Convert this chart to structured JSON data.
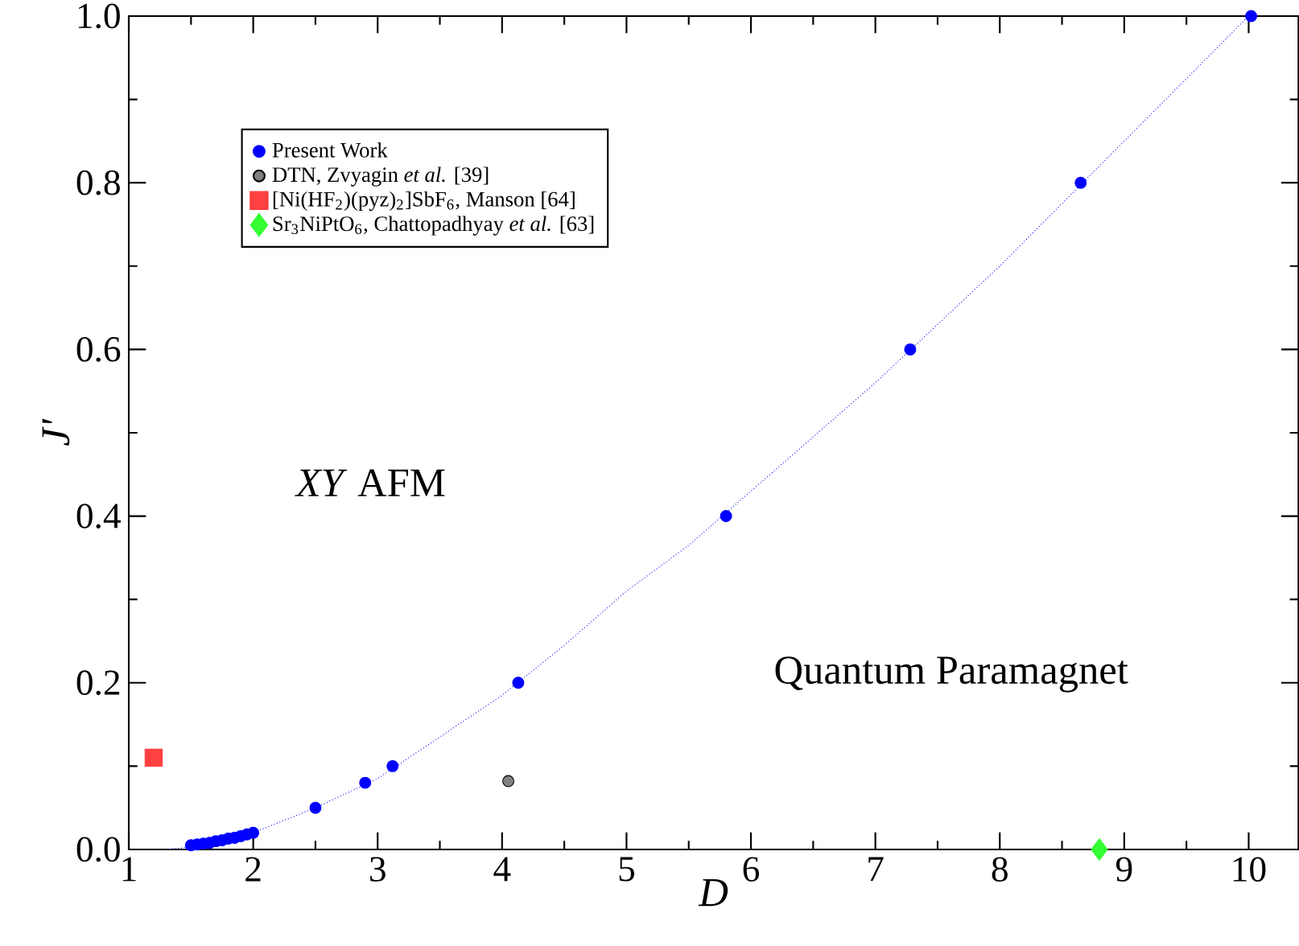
{
  "chart_data": {
    "type": "scatter",
    "xlabel": "D",
    "ylabel": "J'",
    "xlim": [
      1,
      10.4
    ],
    "ylim": [
      0,
      1.0
    ],
    "xticks": [
      1,
      2,
      3,
      4,
      5,
      6,
      7,
      8,
      9,
      10
    ],
    "yticks": [
      {
        "value": 0,
        "label": "0.0"
      },
      0.2,
      0.4,
      0.6,
      0.8,
      {
        "value": 1,
        "label": "1.0"
      }
    ],
    "legend": "top left",
    "grid": false,
    "annotations": [
      "*XY* AFM",
      "Quantum Paramagnet"
    ],
    "series": [
      {
        "type": "line",
        "color": "#0000ff",
        "line_style": "dotted",
        "marker": "none",
        "x": [
          1.3,
          1.5,
          2,
          2.5,
          3,
          3.5,
          4,
          4.5,
          5,
          5.5,
          6,
          7,
          8,
          9,
          10
        ],
        "values": [
          0,
          0.003,
          0.02,
          0.05,
          0.085,
          0.135,
          0.185,
          0.245,
          0.31,
          0.365,
          0.43,
          0.56,
          0.7,
          0.85,
          1.0
        ]
      },
      {
        "name": "Present Work",
        "color": "#0000ff",
        "marker": "circle",
        "x": [
          1.5,
          1.55,
          1.6,
          1.65,
          1.7,
          1.75,
          1.8,
          1.85,
          1.9,
          1.95,
          2.0,
          2.5,
          2.9,
          3.12,
          4.13,
          5.8,
          7.28,
          8.65,
          10.02
        ],
        "values": [
          0.005,
          0.006,
          0.007,
          0.008,
          0.01,
          0.011,
          0.013,
          0.014,
          0.016,
          0.018,
          0.02,
          0.05,
          0.08,
          0.1,
          0.2,
          0.4,
          0.6,
          0.8,
          1.0
        ]
      },
      {
        "name": "DTN, Zvyagin *et al.* [39]",
        "color": "#808080",
        "marker": "circle",
        "x": [
          4.05
        ],
        "values": [
          0.082
        ]
      },
      {
        "name": "[Ni(HF$_{2}$)(pyz)$_{2}$]SbF$_{6}$, Manson [64]",
        "color": "#ff4040",
        "marker": "square",
        "x": [
          1.2
        ],
        "values": [
          0.11
        ]
      },
      {
        "name": "Sr$_{3}$NiPtO$_{6}$, Chattopadhyay *et al.* [63]",
        "color": "#33ff33",
        "marker": "diamond",
        "x": [
          8.8
        ],
        "values": [
          0.0
        ]
      }
    ]
  }
}
